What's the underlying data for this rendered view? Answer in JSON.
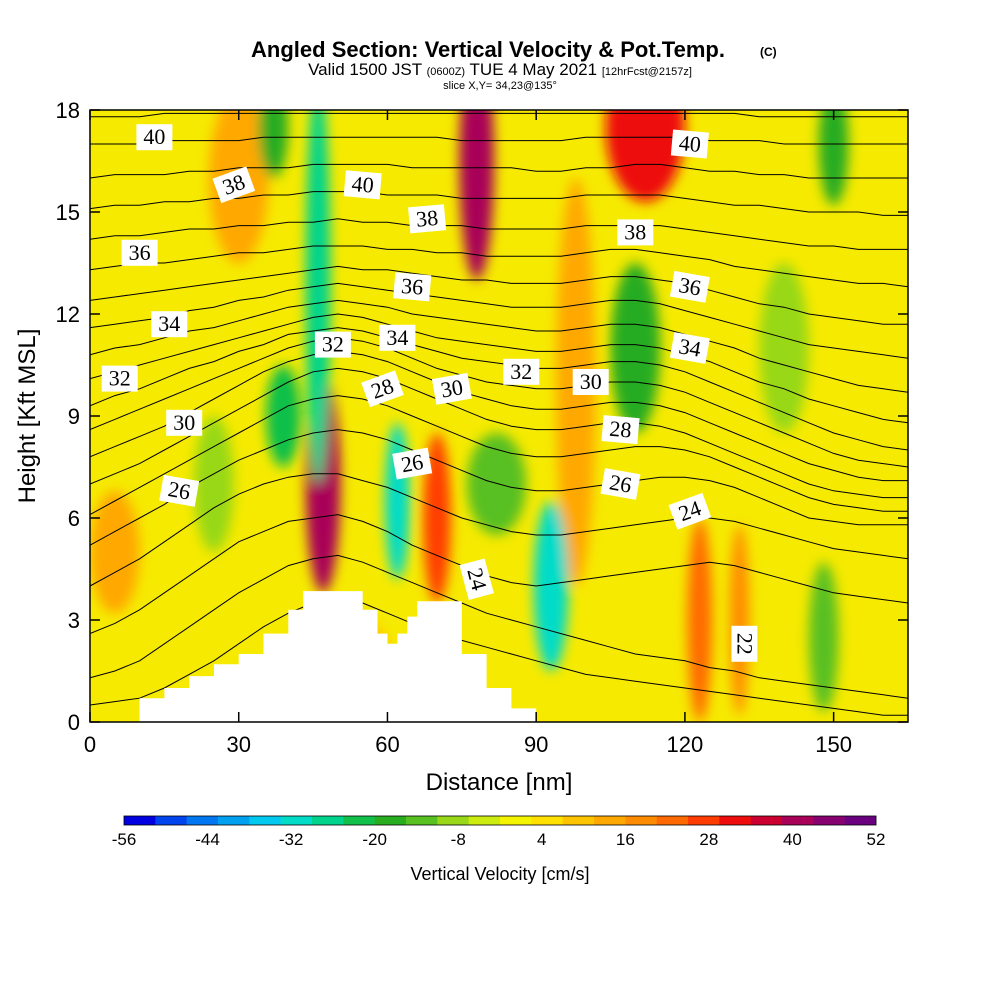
{
  "title": {
    "main": "Angled Section: Vertical Velocity & Pot.Temp.",
    "main_units": "(C)",
    "valid_prefix": "Valid 1500 JST",
    "valid_zulu": "(0600Z)",
    "valid_date": "TUE 4 May 2021",
    "valid_fcst": "[12hrFcst@2157z]",
    "slice": "slice X,Y= 34,23@135°"
  },
  "chart_data": {
    "type": "heatmap",
    "xlabel": "Distance [nm]",
    "ylabel": "Height [Kft MSL]",
    "xlim": [
      0,
      165
    ],
    "ylim": [
      0,
      18
    ],
    "x_ticks": [
      "0",
      "30",
      "60",
      "90",
      "120",
      "150"
    ],
    "y_ticks": [
      "0",
      "3",
      "6",
      "9",
      "12",
      "15",
      "18"
    ],
    "colorbar": {
      "label": "Vertical Velocity [cm/s]",
      "ticks": [
        "-56",
        "-44",
        "-32",
        "-20",
        "-8",
        "4",
        "16",
        "28",
        "40",
        "52"
      ],
      "colors": [
        "#0000e0",
        "#0044ee",
        "#0077f0",
        "#00a0f0",
        "#00c8ee",
        "#00dcc8",
        "#00d48c",
        "#10c048",
        "#28ac20",
        "#58c020",
        "#98d818",
        "#ccec10",
        "#f4f400",
        "#ffe000",
        "#ffc400",
        "#ffa800",
        "#ff8c00",
        "#ff6a00",
        "#ff3c00",
        "#ee0c0c",
        "#cc0030",
        "#a80058",
        "#860070",
        "#6a0080"
      ]
    },
    "terrain": {
      "x": [
        10,
        15,
        20,
        25,
        30,
        35,
        40,
        43,
        50,
        55,
        58,
        60,
        62,
        64,
        66,
        70,
        75,
        80,
        85,
        90
      ],
      "height": [
        0.7,
        1.0,
        1.35,
        1.7,
        2.0,
        2.6,
        3.3,
        3.85,
        3.85,
        3.3,
        2.6,
        2.3,
        2.6,
        3.1,
        3.55,
        3.55,
        2.0,
        1.0,
        0.4,
        0.0
      ]
    },
    "velocity_cells": [
      {
        "x": 47,
        "y": 7.0,
        "sx": 3.5,
        "sy": 3.2,
        "v": 40
      },
      {
        "x": 70,
        "y": 6.0,
        "sx": 2.8,
        "sy": 2.5,
        "v": 28
      },
      {
        "x": 78,
        "y": 16.5,
        "sx": 3.5,
        "sy": 3.5,
        "v": 42
      },
      {
        "x": 112,
        "y": 17.5,
        "sx": 8.0,
        "sy": 2.2,
        "v": 30
      },
      {
        "x": 123,
        "y": 3.0,
        "sx": 2.5,
        "sy": 3.0,
        "v": 22
      },
      {
        "x": 131,
        "y": 3.0,
        "sx": 2.0,
        "sy": 2.8,
        "v": 18
      },
      {
        "x": 98,
        "y": 10.0,
        "sx": 4.0,
        "sy": 6.0,
        "v": 14
      },
      {
        "x": 30,
        "y": 16.0,
        "sx": 6.0,
        "sy": 2.5,
        "v": 12
      },
      {
        "x": 5,
        "y": 5.0,
        "sx": 5.0,
        "sy": 1.8,
        "v": 12
      },
      {
        "x": 55,
        "y": 1.5,
        "sx": 6.0,
        "sy": 1.5,
        "v": 8
      },
      {
        "x": 62,
        "y": 6.5,
        "sx": 2.5,
        "sy": 2.3,
        "v": -30
      },
      {
        "x": 93,
        "y": 4.0,
        "sx": 3.5,
        "sy": 2.5,
        "v": -30
      },
      {
        "x": 46,
        "y": 13.0,
        "sx": 2.5,
        "sy": 6.0,
        "v": -26
      },
      {
        "x": 39,
        "y": 9.0,
        "sx": 3.5,
        "sy": 1.5,
        "v": -22
      },
      {
        "x": 37,
        "y": 17.5,
        "sx": 3.0,
        "sy": 1.5,
        "v": -20
      },
      {
        "x": 110,
        "y": 11.0,
        "sx": 5.0,
        "sy": 2.5,
        "v": -20
      },
      {
        "x": 148,
        "y": 2.5,
        "sx": 3.0,
        "sy": 2.2,
        "v": -14
      },
      {
        "x": 150,
        "y": 17.0,
        "sx": 3.0,
        "sy": 1.8,
        "v": -16
      },
      {
        "x": 82,
        "y": 7.0,
        "sx": 6.0,
        "sy": 1.5,
        "v": -14
      },
      {
        "x": 140,
        "y": 11.0,
        "sx": 5.0,
        "sy": 2.5,
        "v": -10
      },
      {
        "x": 25,
        "y": 7.0,
        "sx": 4.0,
        "sy": 2.0,
        "v": -8
      }
    ],
    "isentropes": [
      {
        "theta": 22,
        "y": [
          0.5,
          0.6,
          0.7,
          1.0,
          1.4,
          1.8,
          2.3,
          2.8,
          3.2,
          3.5,
          3.7,
          3.5,
          3.2,
          2.9,
          2.6,
          2.4,
          2.2,
          2.0,
          1.8,
          1.6,
          1.4,
          1.3,
          1.2,
          1.1,
          1.0,
          0.9,
          0.8,
          0.7,
          0.6,
          0.5,
          0.4,
          0.3,
          0.2,
          0.2
        ]
      },
      {
        "theta": 23,
        "y": [
          1.3,
          1.5,
          1.8,
          2.3,
          2.8,
          3.3,
          3.8,
          4.2,
          4.6,
          4.8,
          4.9,
          4.7,
          4.4,
          4.1,
          3.8,
          3.5,
          3.2,
          3.0,
          2.8,
          2.6,
          2.4,
          2.2,
          2.0,
          1.9,
          1.8,
          1.6,
          1.5,
          1.3,
          1.2,
          1.1,
          1.0,
          0.9,
          0.8,
          0.7
        ]
      },
      {
        "theta": 24,
        "y": [
          2.6,
          2.9,
          3.3,
          3.8,
          4.3,
          4.8,
          5.3,
          5.6,
          5.9,
          6.0,
          6.1,
          5.9,
          5.6,
          5.2,
          4.9,
          4.6,
          4.3,
          4.1,
          4.0,
          4.1,
          4.2,
          4.3,
          4.4,
          4.5,
          4.6,
          4.7,
          4.6,
          4.4,
          4.2,
          4.0,
          3.8,
          3.7,
          3.6,
          3.5
        ]
      },
      {
        "theta": 25,
        "y": [
          4.0,
          4.4,
          4.8,
          5.3,
          5.8,
          6.3,
          6.7,
          7.0,
          7.2,
          7.3,
          7.3,
          7.1,
          6.9,
          6.6,
          6.3,
          6.0,
          5.8,
          5.6,
          5.5,
          5.5,
          5.6,
          5.7,
          5.8,
          5.9,
          6.0,
          6.0,
          5.9,
          5.7,
          5.5,
          5.3,
          5.1,
          5.0,
          4.9,
          4.8
        ]
      },
      {
        "theta": 26,
        "y": [
          5.2,
          5.6,
          6.0,
          6.4,
          6.9,
          7.3,
          7.7,
          8.0,
          8.3,
          8.5,
          8.6,
          8.5,
          8.3,
          8.0,
          7.7,
          7.4,
          7.1,
          6.9,
          6.8,
          6.8,
          6.9,
          7.0,
          7.1,
          7.2,
          7.2,
          7.1,
          6.9,
          6.6,
          6.3,
          6.0,
          5.9,
          5.8,
          5.8,
          5.8
        ]
      },
      {
        "theta": 27,
        "y": [
          6.1,
          6.5,
          6.9,
          7.3,
          7.7,
          8.1,
          8.5,
          8.9,
          9.3,
          9.5,
          9.6,
          9.5,
          9.3,
          9.0,
          8.7,
          8.4,
          8.1,
          7.9,
          7.8,
          7.8,
          7.9,
          8.0,
          8.1,
          8.1,
          8.0,
          7.8,
          7.5,
          7.2,
          6.9,
          6.6,
          6.4,
          6.3,
          6.2,
          6.2
        ]
      },
      {
        "theta": 28,
        "y": [
          7.0,
          7.3,
          7.6,
          8.0,
          8.4,
          8.8,
          9.2,
          9.6,
          10.0,
          10.3,
          10.4,
          10.3,
          10.1,
          9.8,
          9.5,
          9.2,
          8.9,
          8.7,
          8.6,
          8.6,
          8.7,
          8.8,
          8.8,
          8.7,
          8.5,
          8.2,
          7.9,
          7.6,
          7.3,
          7.0,
          6.8,
          6.7,
          6.6,
          6.6
        ]
      },
      {
        "theta": 29,
        "y": [
          7.8,
          8.1,
          8.4,
          8.7,
          9.1,
          9.5,
          9.9,
          10.3,
          10.6,
          10.8,
          10.9,
          10.8,
          10.6,
          10.3,
          10.0,
          9.7,
          9.5,
          9.3,
          9.2,
          9.2,
          9.3,
          9.4,
          9.4,
          9.3,
          9.1,
          8.8,
          8.5,
          8.2,
          7.9,
          7.6,
          7.4,
          7.2,
          7.1,
          7.1
        ]
      },
      {
        "theta": 30,
        "y": [
          8.6,
          8.9,
          9.2,
          9.5,
          9.8,
          10.1,
          10.4,
          10.7,
          11.0,
          11.2,
          11.3,
          11.2,
          11.0,
          10.7,
          10.4,
          10.2,
          10.0,
          9.9,
          9.8,
          9.8,
          9.9,
          10.0,
          10.0,
          9.9,
          9.7,
          9.4,
          9.1,
          8.8,
          8.5,
          8.2,
          7.9,
          7.7,
          7.6,
          7.5
        ]
      },
      {
        "theta": 31,
        "y": [
          9.3,
          9.6,
          9.8,
          10.1,
          10.4,
          10.6,
          10.9,
          11.1,
          11.4,
          11.5,
          11.6,
          11.5,
          11.3,
          11.1,
          10.9,
          10.7,
          10.6,
          10.5,
          10.4,
          10.4,
          10.5,
          10.6,
          10.6,
          10.5,
          10.3,
          10.0,
          9.7,
          9.4,
          9.1,
          8.8,
          8.5,
          8.3,
          8.1,
          8.0
        ]
      },
      {
        "theta": 32,
        "y": [
          10.1,
          10.3,
          10.5,
          10.7,
          10.9,
          11.1,
          11.3,
          11.5,
          11.7,
          11.9,
          12.0,
          11.9,
          11.7,
          11.5,
          11.3,
          11.2,
          11.1,
          11.0,
          10.9,
          10.9,
          11.0,
          11.1,
          11.1,
          11.0,
          10.8,
          10.6,
          10.3,
          10.0,
          9.8,
          9.5,
          9.3,
          9.1,
          8.9,
          8.8
        ]
      },
      {
        "theta": 33,
        "y": [
          10.8,
          11.0,
          11.1,
          11.3,
          11.5,
          11.6,
          11.8,
          12.0,
          12.2,
          12.3,
          12.4,
          12.3,
          12.2,
          12.0,
          11.9,
          11.8,
          11.7,
          11.6,
          11.5,
          11.5,
          11.6,
          11.7,
          11.7,
          11.6,
          11.4,
          11.2,
          11.0,
          10.7,
          10.5,
          10.3,
          10.1,
          9.9,
          9.8,
          9.7
        ]
      },
      {
        "theta": 34,
        "y": [
          11.6,
          11.7,
          11.8,
          11.9,
          12.1,
          12.2,
          12.4,
          12.5,
          12.7,
          12.8,
          12.9,
          12.8,
          12.7,
          12.6,
          12.5,
          12.4,
          12.3,
          12.2,
          12.2,
          12.2,
          12.3,
          12.4,
          12.4,
          12.3,
          12.1,
          11.9,
          11.7,
          11.5,
          11.3,
          11.1,
          11.0,
          10.9,
          10.8,
          10.7
        ]
      },
      {
        "theta": 35,
        "y": [
          12.4,
          12.5,
          12.6,
          12.7,
          12.8,
          12.9,
          13.0,
          13.1,
          13.2,
          13.3,
          13.4,
          13.3,
          13.3,
          13.2,
          13.1,
          13.0,
          13.0,
          12.9,
          12.9,
          12.9,
          13.0,
          13.1,
          13.1,
          13.0,
          12.9,
          12.7,
          12.5,
          12.3,
          12.2,
          12.0,
          11.9,
          11.8,
          11.7,
          11.7
        ]
      },
      {
        "theta": 36,
        "y": [
          13.3,
          13.4,
          13.5,
          13.5,
          13.6,
          13.7,
          13.8,
          13.8,
          13.9,
          14.0,
          14.0,
          14.0,
          13.9,
          13.9,
          13.8,
          13.8,
          13.7,
          13.7,
          13.7,
          13.7,
          13.8,
          13.9,
          13.9,
          13.8,
          13.7,
          13.6,
          13.4,
          13.3,
          13.2,
          13.1,
          13.0,
          12.9,
          12.9,
          12.8
        ]
      },
      {
        "theta": 37,
        "y": [
          14.2,
          14.3,
          14.3,
          14.4,
          14.5,
          14.5,
          14.6,
          14.6,
          14.7,
          14.7,
          14.8,
          14.7,
          14.7,
          14.6,
          14.6,
          14.6,
          14.5,
          14.5,
          14.5,
          14.5,
          14.6,
          14.6,
          14.6,
          14.6,
          14.5,
          14.4,
          14.3,
          14.2,
          14.1,
          14.0,
          14.0,
          13.9,
          13.9,
          13.9
        ]
      },
      {
        "theta": 38,
        "y": [
          15.1,
          15.2,
          15.2,
          15.3,
          15.3,
          15.4,
          15.4,
          15.5,
          15.5,
          15.6,
          15.6,
          15.6,
          15.5,
          15.5,
          15.5,
          15.4,
          15.4,
          15.4,
          15.4,
          15.4,
          15.5,
          15.5,
          15.5,
          15.5,
          15.4,
          15.3,
          15.2,
          15.2,
          15.1,
          15.0,
          15.0,
          15.0,
          14.9,
          14.9
        ]
      },
      {
        "theta": 39,
        "y": [
          16.0,
          16.1,
          16.1,
          16.1,
          16.2,
          16.2,
          16.3,
          16.3,
          16.3,
          16.4,
          16.4,
          16.4,
          16.4,
          16.3,
          16.3,
          16.3,
          16.3,
          16.3,
          16.2,
          16.2,
          16.3,
          16.3,
          16.4,
          16.4,
          16.3,
          16.2,
          16.2,
          16.1,
          16.1,
          16.0,
          16.0,
          16.0,
          16.0,
          16.0
        ]
      },
      {
        "theta": 40,
        "y": [
          17.0,
          17.0,
          17.0,
          17.1,
          17.1,
          17.1,
          17.1,
          17.2,
          17.2,
          17.2,
          17.2,
          17.2,
          17.2,
          17.2,
          17.2,
          17.1,
          17.1,
          17.1,
          17.1,
          17.1,
          17.2,
          17.2,
          17.2,
          17.2,
          17.2,
          17.1,
          17.1,
          17.1,
          17.0,
          17.0,
          17.0,
          17.0,
          17.0,
          17.0
        ]
      },
      {
        "theta": 41,
        "y": [
          17.8,
          17.8,
          17.8,
          17.9,
          17.9,
          17.9,
          17.9,
          17.9,
          17.9,
          17.9,
          17.9,
          17.9,
          17.9,
          17.9,
          17.9,
          17.9,
          17.9,
          17.9,
          17.9,
          17.9,
          17.9,
          17.9,
          17.9,
          17.9,
          17.9,
          17.9,
          17.9,
          17.8,
          17.8,
          17.8,
          17.8,
          17.8,
          17.8,
          17.8
        ]
      }
    ],
    "isentrope_x_step": 5,
    "contour_labels": [
      {
        "text": "40",
        "x": 13,
        "y": 17.2,
        "angle": 0
      },
      {
        "text": "38",
        "x": 29,
        "y": 15.8,
        "angle": 20
      },
      {
        "text": "40",
        "x": 55,
        "y": 15.8,
        "angle": -5
      },
      {
        "text": "38",
        "x": 68,
        "y": 14.8,
        "angle": 5
      },
      {
        "text": "40",
        "x": 121,
        "y": 17.0,
        "angle": -5
      },
      {
        "text": "38",
        "x": 110,
        "y": 14.4,
        "angle": 0
      },
      {
        "text": "36",
        "x": 10,
        "y": 13.8,
        "angle": 0
      },
      {
        "text": "36",
        "x": 65,
        "y": 12.8,
        "angle": -5
      },
      {
        "text": "36",
        "x": 121,
        "y": 12.8,
        "angle": -10
      },
      {
        "text": "34",
        "x": 16,
        "y": 11.7,
        "angle": 0
      },
      {
        "text": "34",
        "x": 62,
        "y": 11.3,
        "angle": 0
      },
      {
        "text": "34",
        "x": 121,
        "y": 11.0,
        "angle": -10
      },
      {
        "text": "32",
        "x": 49,
        "y": 11.1,
        "angle": 0
      },
      {
        "text": "32",
        "x": 6,
        "y": 10.1,
        "angle": 0
      },
      {
        "text": "32",
        "x": 87,
        "y": 10.3,
        "angle": 0
      },
      {
        "text": "30",
        "x": 101,
        "y": 10.0,
        "angle": 0
      },
      {
        "text": "28",
        "x": 59,
        "y": 9.8,
        "angle": 20
      },
      {
        "text": "30",
        "x": 73,
        "y": 9.8,
        "angle": 10
      },
      {
        "text": "30",
        "x": 19,
        "y": 8.8,
        "angle": 0
      },
      {
        "text": "28",
        "x": 107,
        "y": 8.6,
        "angle": -5
      },
      {
        "text": "26",
        "x": 65,
        "y": 7.6,
        "angle": 10
      },
      {
        "text": "26",
        "x": 18,
        "y": 6.8,
        "angle": -10
      },
      {
        "text": "26",
        "x": 107,
        "y": 7.0,
        "angle": -10
      },
      {
        "text": "24",
        "x": 121,
        "y": 6.2,
        "angle": 20
      },
      {
        "text": "24",
        "x": 78,
        "y": 4.2,
        "angle": -75
      },
      {
        "text": "22",
        "x": 132,
        "y": 2.3,
        "angle": -90
      }
    ]
  }
}
